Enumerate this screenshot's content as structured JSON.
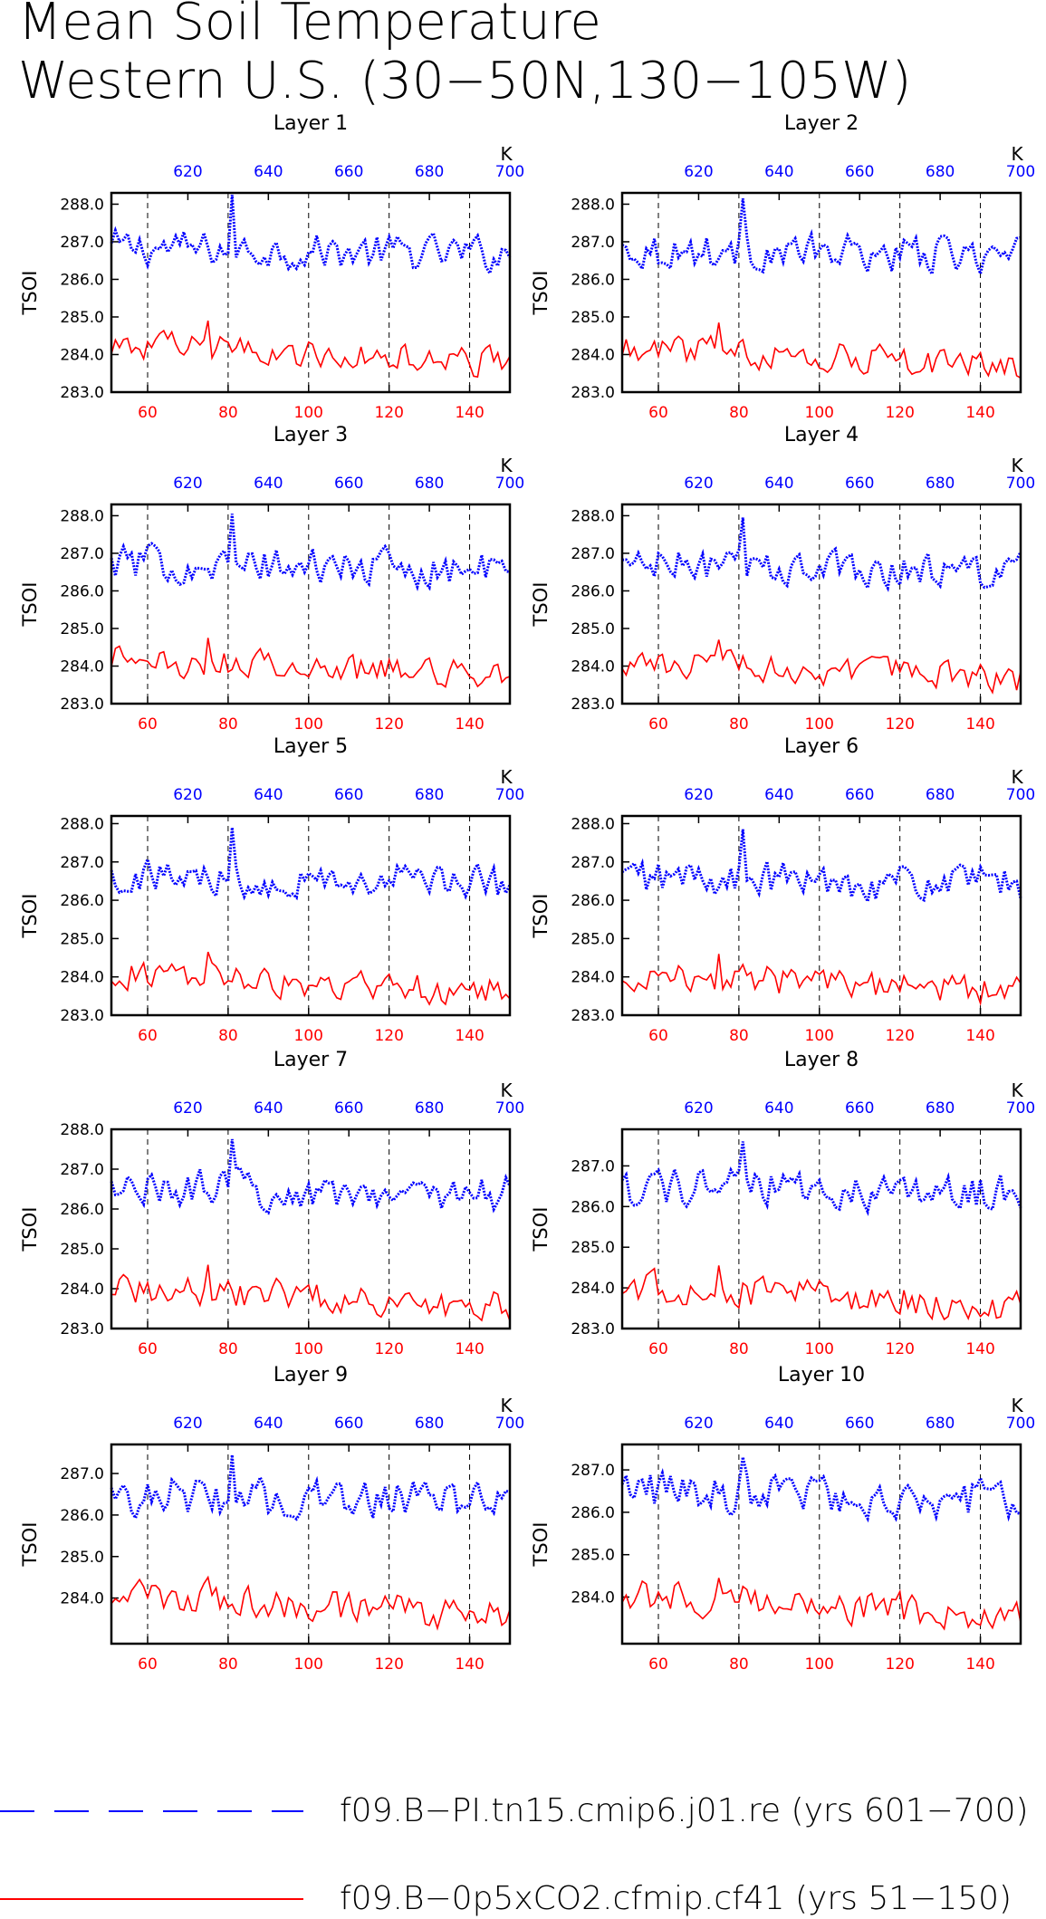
{
  "figure": {
    "title_line1": "Mean Soil Temperature",
    "title_line2": "Western U.S. (30−50N,130−105W)",
    "ylabel": "TSOI",
    "k_label": "K",
    "legend": [
      {
        "label": "f09.B−PI.tn15.cmip6.j01.re (yrs 601−700)",
        "color": "#0000ff",
        "style": "dashed"
      },
      {
        "label": "f09.B−0p5xCO2.cfmip.cf41 (yrs 51−150)",
        "color": "#ff0000",
        "style": "solid"
      }
    ]
  },
  "colors": {
    "pi": "#0000ff",
    "co2": "#ff0000",
    "axis": "#000000",
    "grid": "#000000"
  },
  "chart_data": [
    {
      "type": "line",
      "title": "Layer 1",
      "ylim": [
        283.0,
        288.3
      ],
      "yticks": [
        "283.0",
        "284.0",
        "285.0",
        "286.0",
        "287.0",
        "288.0"
      ],
      "xlim": [
        51,
        150
      ],
      "xticks": [
        60,
        80,
        100,
        120,
        140
      ],
      "x2lim": [
        601,
        700
      ],
      "x2ticks": [
        620,
        640,
        660,
        680,
        700
      ],
      "pi_mean": 286.75,
      "co2_mean": 284.0,
      "pi_peak": 288.25,
      "co2_peak": 284.9
    },
    {
      "type": "line",
      "title": "Layer 2",
      "ylim": [
        283.0,
        288.3
      ],
      "yticks": [
        "283.0",
        "284.0",
        "285.0",
        "286.0",
        "287.0",
        "288.0"
      ],
      "xlim": [
        51,
        150
      ],
      "xticks": [
        60,
        80,
        100,
        120,
        140
      ],
      "x2lim": [
        601,
        700
      ],
      "x2ticks": [
        620,
        640,
        660,
        680,
        700
      ],
      "pi_mean": 286.7,
      "co2_mean": 283.95,
      "pi_peak": 288.15,
      "co2_peak": 284.85
    },
    {
      "type": "line",
      "title": "Layer 3",
      "ylim": [
        283.0,
        288.3
      ],
      "yticks": [
        "283.0",
        "284.0",
        "285.0",
        "286.0",
        "287.0",
        "288.0"
      ],
      "xlim": [
        51,
        150
      ],
      "xticks": [
        60,
        80,
        100,
        120,
        140
      ],
      "x2lim": [
        601,
        700
      ],
      "x2ticks": [
        620,
        640,
        660,
        680,
        700
      ],
      "pi_mean": 286.65,
      "co2_mean": 283.95,
      "pi_peak": 288.05,
      "co2_peak": 284.75
    },
    {
      "type": "line",
      "title": "Layer 4",
      "ylim": [
        283.0,
        288.3
      ],
      "yticks": [
        "283.0",
        "284.0",
        "285.0",
        "286.0",
        "287.0",
        "288.0"
      ],
      "xlim": [
        51,
        150
      ],
      "xticks": [
        60,
        80,
        100,
        120,
        140
      ],
      "x2lim": [
        601,
        700
      ],
      "x2ticks": [
        620,
        640,
        660,
        680,
        700
      ],
      "pi_mean": 286.6,
      "co2_mean": 283.9,
      "pi_peak": 287.95,
      "co2_peak": 284.7
    },
    {
      "type": "line",
      "title": "Layer 5",
      "ylim": [
        283.0,
        288.2
      ],
      "yticks": [
        "283.0",
        "284.0",
        "285.0",
        "286.0",
        "287.0",
        "288.0"
      ],
      "xlim": [
        51,
        150
      ],
      "xticks": [
        60,
        80,
        100,
        120,
        140
      ],
      "x2lim": [
        601,
        700
      ],
      "x2ticks": [
        620,
        640,
        660,
        680,
        700
      ],
      "pi_mean": 286.55,
      "co2_mean": 283.85,
      "pi_peak": 287.9,
      "co2_peak": 284.65
    },
    {
      "type": "line",
      "title": "Layer 6",
      "ylim": [
        283.0,
        288.2
      ],
      "yticks": [
        "283.0",
        "284.0",
        "285.0",
        "286.0",
        "287.0",
        "288.0"
      ],
      "xlim": [
        51,
        150
      ],
      "xticks": [
        60,
        80,
        100,
        120,
        140
      ],
      "x2lim": [
        601,
        700
      ],
      "x2ticks": [
        620,
        640,
        660,
        680,
        700
      ],
      "pi_mean": 286.5,
      "co2_mean": 283.85,
      "pi_peak": 287.85,
      "co2_peak": 284.6
    },
    {
      "type": "line",
      "title": "Layer 7",
      "ylim": [
        283.0,
        288.0
      ],
      "yticks": [
        "283.0",
        "284.0",
        "285.0",
        "286.0",
        "287.0",
        "288.0"
      ],
      "xlim": [
        51,
        150
      ],
      "xticks": [
        60,
        80,
        100,
        120,
        140
      ],
      "x2lim": [
        601,
        700
      ],
      "x2ticks": [
        620,
        640,
        660,
        680,
        700
      ],
      "pi_mean": 286.45,
      "co2_mean": 283.8,
      "pi_peak": 287.75,
      "co2_peak": 284.6
    },
    {
      "type": "line",
      "title": "Layer 8",
      "ylim": [
        283.0,
        287.9
      ],
      "yticks": [
        "283.0",
        "284.0",
        "285.0",
        "286.0",
        "287.0"
      ],
      "xlim": [
        51,
        150
      ],
      "xticks": [
        60,
        80,
        100,
        120,
        140
      ],
      "x2lim": [
        601,
        700
      ],
      "x2ticks": [
        620,
        640,
        660,
        680,
        700
      ],
      "pi_mean": 286.4,
      "co2_mean": 283.8,
      "pi_peak": 287.6,
      "co2_peak": 284.55
    },
    {
      "type": "line",
      "title": "Layer 9",
      "ylim": [
        282.9,
        287.7
      ],
      "yticks": [
        "284.0",
        "285.0",
        "286.0",
        "287.0"
      ],
      "xlim": [
        51,
        150
      ],
      "xticks": [
        60,
        80,
        100,
        120,
        140
      ],
      "x2lim": [
        601,
        700
      ],
      "x2ticks": [
        620,
        640,
        660,
        680,
        700
      ],
      "pi_mean": 286.4,
      "co2_mean": 283.8,
      "pi_peak": 287.45,
      "co2_peak": 284.5
    },
    {
      "type": "line",
      "title": "Layer 10",
      "ylim": [
        282.9,
        287.6
      ],
      "yticks": [
        "284.0",
        "285.0",
        "286.0",
        "287.0"
      ],
      "xlim": [
        51,
        150
      ],
      "xticks": [
        60,
        80,
        100,
        120,
        140
      ],
      "x2lim": [
        601,
        700
      ],
      "x2ticks": [
        620,
        640,
        660,
        680,
        700
      ],
      "pi_mean": 286.4,
      "co2_mean": 283.8,
      "pi_peak": 287.3,
      "co2_peak": 284.45
    }
  ]
}
